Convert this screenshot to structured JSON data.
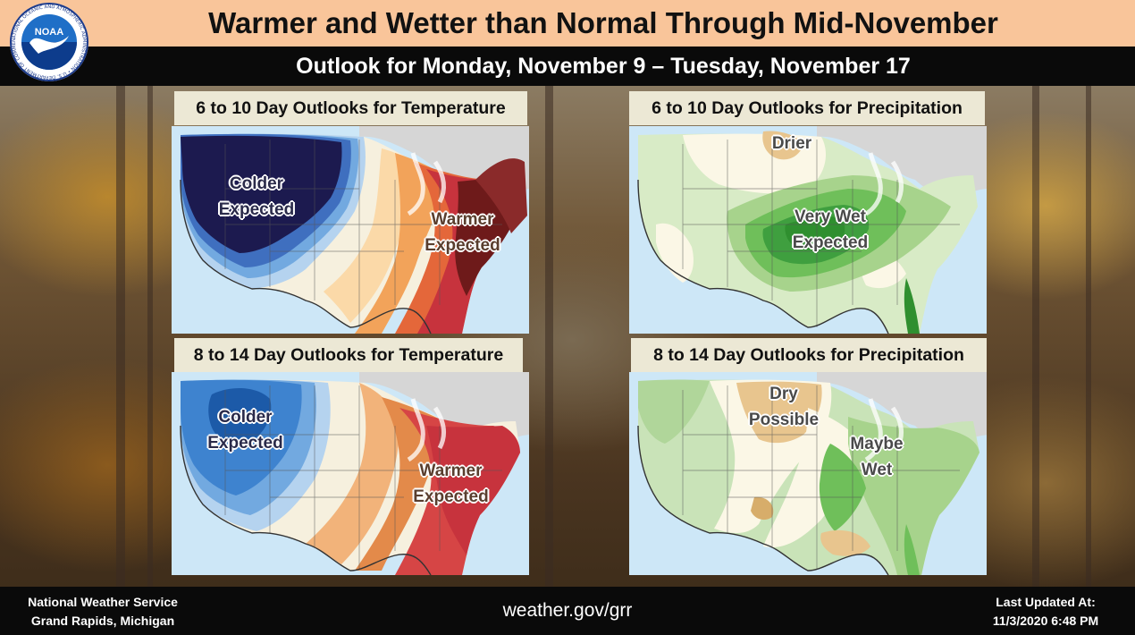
{
  "header": {
    "title": "Warmer and Wetter than Normal Through Mid-November",
    "subtitle": "Outlook for Monday, November 9 – Tuesday, November 17",
    "logo_text": "NOAA",
    "logo_ring_text": "NATIONAL OCEANIC AND ATMOSPHERIC ADMINISTRATION • U.S. DEPARTMENT OF COMMERCE"
  },
  "panels": {
    "temp_6_10": {
      "label": "6 to 10 Day Outlooks for Temperature",
      "annotations": [
        {
          "line1": "Colder",
          "line2": "Expected"
        },
        {
          "line1": "Warmer",
          "line2": "Expected"
        }
      ]
    },
    "precip_6_10": {
      "label": "6 to 10 Day Outlooks for Precipitation",
      "annotations": [
        {
          "line1": "Drier"
        },
        {
          "line1": "Very Wet",
          "line2": "Expected"
        }
      ]
    },
    "temp_8_14": {
      "label": "8 to 14 Day Outlooks for Temperature",
      "annotations": [
        {
          "line1": "Colder",
          "line2": "Expected"
        },
        {
          "line1": "Warmer",
          "line2": "Expected"
        }
      ]
    },
    "precip_8_14": {
      "label": "8 to 14 Day Outlooks for Precipitation",
      "annotations": [
        {
          "line1": "Dry",
          "line2": "Possible"
        },
        {
          "line1": "Maybe",
          "line2": "Wet"
        }
      ]
    }
  },
  "colors": {
    "title_bar": "#f9c59a",
    "subtitle_bar": "#0a0a0a",
    "panel_label_bg": "#ece8d5",
    "colder_dark": "#1c1a4f",
    "colder_light": "#9fc4e8",
    "warmer_dark": "#6e1a1a",
    "warmer_light": "#f2a35a",
    "wet_dark": "#2f8f2f",
    "wet_light": "#c9e3b8",
    "dry": "#d7ad6a",
    "ocean": "#cde7f7",
    "land": "#d6d6d6"
  },
  "footer": {
    "office_line1": "National Weather Service",
    "office_line2": "Grand Rapids, Michigan",
    "website": "weather.gov/grr",
    "updated_label": "Last Updated At:",
    "updated_time": "11/3/2020 6:48 PM"
  }
}
